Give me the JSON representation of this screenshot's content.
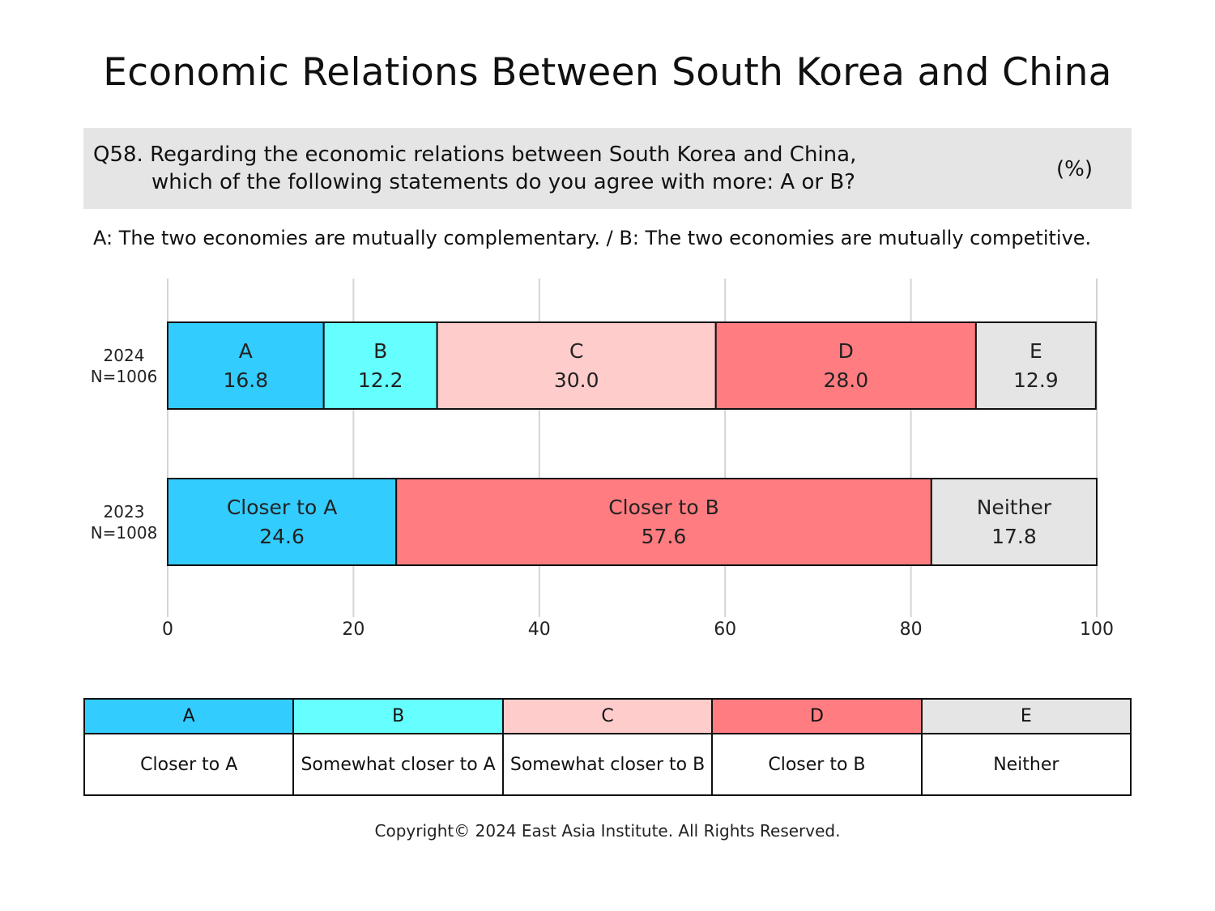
{
  "title": "Economic Relations Between South Korea and China",
  "question": {
    "line1": "Q58. Regarding the economic relations between South Korea and China,",
    "line2": "which of the following statements do you agree with more: A or B?",
    "unit": "(%)"
  },
  "description": "A: The two economies are mutually complementary. / B: The two economies are mutually competitive.",
  "chart_data": {
    "type": "bar",
    "orientation": "horizontal",
    "stacked": true,
    "xlim": [
      0,
      100
    ],
    "xticks": [
      "0",
      "20",
      "40",
      "60",
      "80",
      "100"
    ],
    "grid": true,
    "rows": [
      {
        "year": "2024",
        "n": "N=1006",
        "segments": [
          {
            "label": "A",
            "value": 16.8,
            "color": "#33ccff"
          },
          {
            "label": "B",
            "value": 12.2,
            "color": "#66ffff"
          },
          {
            "label": "C",
            "value": 30.0,
            "color": "#ffcccc"
          },
          {
            "label": "D",
            "value": 28.0,
            "color": "#ff7c80"
          },
          {
            "label": "E",
            "value": 12.9,
            "color": "#e6e5e6"
          }
        ]
      },
      {
        "year": "2023",
        "n": "N=1008",
        "segments": [
          {
            "label": "Closer to A",
            "value": 24.6,
            "color": "#33ccff"
          },
          {
            "label": "Closer to B",
            "value": 57.6,
            "color": "#ff7c80"
          },
          {
            "label": "Neither",
            "value": 17.8,
            "color": "#e6e5e6"
          }
        ]
      }
    ]
  },
  "legend": [
    {
      "key": "A",
      "label": "Closer to A",
      "color": "#33ccff"
    },
    {
      "key": "B",
      "label": "Somewhat closer to A",
      "color": "#66ffff"
    },
    {
      "key": "C",
      "label": "Somewhat closer to B",
      "color": "#ffcccc"
    },
    {
      "key": "D",
      "label": "Closer to B",
      "color": "#ff7c80"
    },
    {
      "key": "E",
      "label": "Neither",
      "color": "#e6e5e6"
    }
  ],
  "copyright": "Copyright© 2024 East Asia Institute. All Rights Reserved."
}
